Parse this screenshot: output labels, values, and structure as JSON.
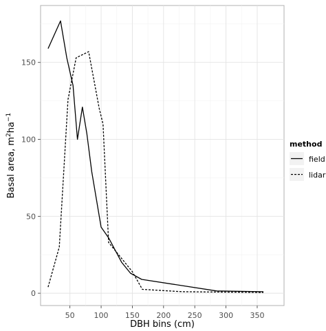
{
  "chart_data": {
    "type": "line",
    "xlabel": "DBH bins (cm)",
    "ylabel": "Basal area, m",
    "ylabel_sup1": "2",
    "ylabel_mid": "ha",
    "ylabel_sup2": "−1",
    "xlim": [
      3,
      393
    ],
    "ylim": [
      -8,
      187
    ],
    "x_ticks": [
      {
        "value": 50,
        "label": "50"
      },
      {
        "value": 100,
        "label": "100"
      },
      {
        "value": 150,
        "label": "150"
      },
      {
        "value": 200,
        "label": "200"
      },
      {
        "value": 250,
        "label": "250"
      },
      {
        "value": 300,
        "label": "300"
      },
      {
        "value": 350,
        "label": "350"
      }
    ],
    "y_ticks": [
      {
        "value": 0,
        "label": "0"
      },
      {
        "value": 50,
        "label": "50"
      },
      {
        "value": 100,
        "label": "100"
      },
      {
        "value": 150,
        "label": "150"
      }
    ],
    "grid": true,
    "legend": {
      "title": "method",
      "placement": "right"
    },
    "series": [
      {
        "name": "field",
        "dash": "solid",
        "points": [
          [
            15,
            159
          ],
          [
            35,
            177
          ],
          [
            45,
            153
          ],
          [
            55,
            135
          ],
          [
            62,
            100
          ],
          [
            70,
            121
          ],
          [
            77,
            104
          ],
          [
            85,
            79
          ],
          [
            100,
            43
          ],
          [
            112,
            36
          ],
          [
            133,
            20
          ],
          [
            147,
            13
          ],
          [
            165,
            9
          ],
          [
            285,
            1.5
          ],
          [
            360,
            1
          ]
        ]
      },
      {
        "name": "lidar",
        "dash": "dashed",
        "points": [
          [
            15,
            4
          ],
          [
            33,
            30
          ],
          [
            47,
            126
          ],
          [
            60,
            153
          ],
          [
            70,
            155
          ],
          [
            80,
            157
          ],
          [
            97,
            120
          ],
          [
            103,
            110
          ],
          [
            112,
            33
          ],
          [
            128,
            25
          ],
          [
            150,
            14
          ],
          [
            166,
            2.5
          ],
          [
            230,
            1
          ],
          [
            360,
            0.5
          ]
        ]
      }
    ]
  }
}
